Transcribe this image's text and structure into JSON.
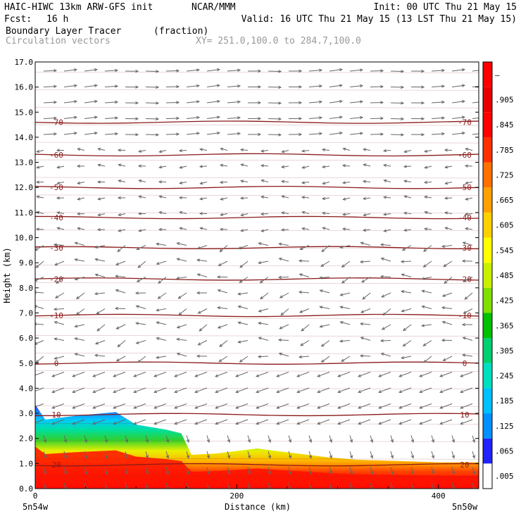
{
  "header": {
    "title_line": "HAIC-HIWC 13km ARW-GFS init",
    "center": "NCAR/MMM",
    "init": "Init: 00 UTC Thu 21 May 15",
    "fcst_label": "Fcst:",
    "fcst_value": "16 h",
    "valid": "Valid: 16 UTC Thu 21 May 15 (13 LST Thu 21 May 15)",
    "field": "Boundary Layer Tracer",
    "field_units": "(fraction)",
    "overlay": "Circulation vectors",
    "xy": "XY= 251.0,100.0 to 284.7,100.0"
  },
  "chart_data": {
    "type": "cross-section",
    "xlabel": "Distance (km)",
    "ylabel": "Height (km)",
    "xlim": [
      0,
      440
    ],
    "ylim": [
      0,
      17
    ],
    "x_ticks": [
      "0",
      "200",
      "400"
    ],
    "x_tick_values": [
      0,
      200,
      400
    ],
    "x_endpoints": [
      "5n54w",
      "5n50w"
    ],
    "y_ticks": [
      "0.0",
      "1.0",
      "2.0",
      "3.0",
      "4.0",
      "5.0",
      "6.0",
      "7.0",
      "8.0",
      "9.0",
      "10.0",
      "11.0",
      "12.0",
      "13.0",
      "14.0",
      "15.0",
      "16.0",
      "17.0"
    ],
    "y_tick_values": [
      0,
      1,
      2,
      3,
      4,
      5,
      6,
      7,
      8,
      9,
      10,
      11,
      12,
      13,
      14,
      15,
      16,
      17
    ],
    "tracer_top_km": [
      [
        0,
        3.35
      ],
      [
        10,
        2.75
      ],
      [
        40,
        2.9
      ],
      [
        80,
        3.05
      ],
      [
        100,
        2.55
      ],
      [
        130,
        2.35
      ],
      [
        145,
        2.2
      ],
      [
        155,
        1.35
      ],
      [
        180,
        1.4
      ],
      [
        220,
        1.6
      ],
      [
        260,
        1.4
      ],
      [
        290,
        1.25
      ],
      [
        320,
        1.15
      ],
      [
        360,
        1.1
      ],
      [
        400,
        1.05
      ],
      [
        440,
        1.05
      ]
    ],
    "colorbar": {
      "labels": [
        ".005",
        ".065",
        ".125",
        ".185",
        ".245",
        ".305",
        ".365",
        ".425",
        ".485",
        ".545",
        ".605",
        ".665",
        ".725",
        ".785",
        ".845",
        ".905",
        "—"
      ],
      "colors": [
        "#ffffff",
        "#2222ff",
        "#0090ff",
        "#00c0ff",
        "#00e0c0",
        "#00d070",
        "#00c000",
        "#80e000",
        "#c8f000",
        "#ffff00",
        "#ffd000",
        "#ffa000",
        "#ff7000",
        "#ff3000",
        "#ff0000",
        "#e80000",
        "#ff0000"
      ]
    },
    "temperature_contours": [
      {
        "label": "20",
        "km": 0.95
      },
      {
        "label": "10",
        "km": 2.95
      },
      {
        "label": "0",
        "km": 5.0
      },
      {
        "label": "-10",
        "km": 6.9
      },
      {
        "label": "-20",
        "km": 8.35
      },
      {
        "label": "-30",
        "km": 9.6
      },
      {
        "label": "-40",
        "km": 10.8
      },
      {
        "label": "-50",
        "km": 12.0
      },
      {
        "label": "-60",
        "km": 13.3
      },
      {
        "label": "-70",
        "km": 14.6
      }
    ]
  }
}
